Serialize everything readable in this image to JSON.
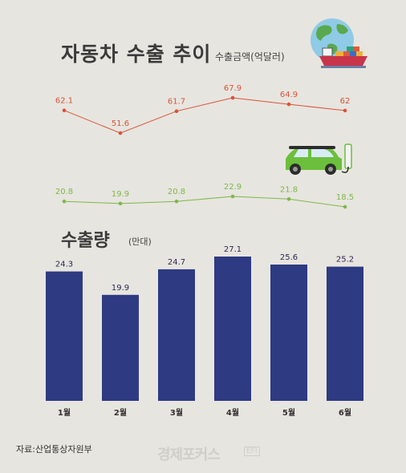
{
  "header": {
    "title": "자동차 수출 추이",
    "amount_unit": "수출금액(억달러)",
    "volume_title": "수출량",
    "volume_unit": "(만대)"
  },
  "footer": {
    "source": "자료:산업통상자원부",
    "brand": "경제포커스",
    "brand_tag": "EFI"
  },
  "colors": {
    "amount_line": "#d9533a",
    "ev_line": "#7db84a",
    "bar": "#2e3a82"
  },
  "icons": [
    "globe-cargo-ship-icon",
    "electric-car-charging-icon"
  ],
  "chart_data": [
    {
      "type": "line",
      "title": "수출금액(억달러)",
      "categories": [
        "1월",
        "2월",
        "3월",
        "4월",
        "5월",
        "6월"
      ],
      "values": [
        62.1,
        51.6,
        61.7,
        67.9,
        64.9,
        62
      ],
      "value_labels": [
        "62.1",
        "51.6",
        "61.7",
        "67.9",
        "64.9",
        "62"
      ]
    },
    {
      "type": "line",
      "title": "",
      "categories": [
        "1월",
        "2월",
        "3월",
        "4월",
        "5월",
        "6월"
      ],
      "values": [
        20.8,
        19.9,
        20.8,
        22.9,
        21.8,
        18.5
      ],
      "value_labels": [
        "20.8",
        "19.9",
        "20.8",
        "22.9",
        "21.8",
        "18.5"
      ]
    },
    {
      "type": "bar",
      "title": "수출량 (만대)",
      "categories": [
        "1월",
        "2월",
        "3월",
        "4월",
        "5월",
        "6월"
      ],
      "values": [
        24.3,
        19.9,
        24.7,
        27.1,
        25.6,
        25.2
      ],
      "value_labels": [
        "24.3",
        "19.9",
        "24.7",
        "27.1",
        "25.6",
        "25.2"
      ],
      "ylim": [
        0,
        27.1
      ]
    }
  ]
}
